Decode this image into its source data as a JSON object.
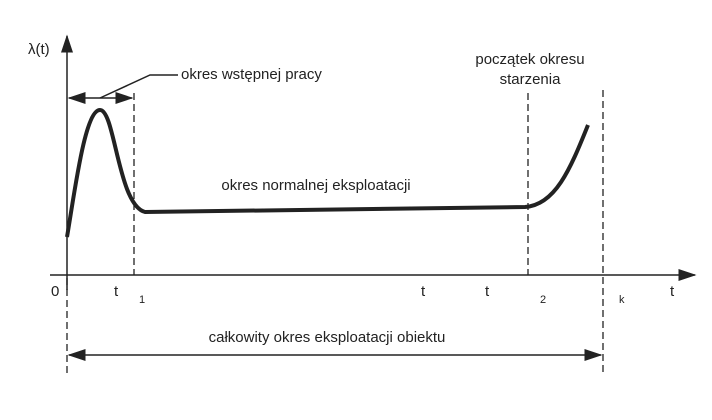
{
  "axes": {
    "y_label": "λ(t)",
    "origin": "0",
    "x_label": "t"
  },
  "markers": {
    "t1": {
      "text": "t",
      "subscript": "1"
    },
    "t_mid": "t",
    "t2": {
      "text": "t",
      "subscript": "2"
    },
    "k": "k"
  },
  "annotations": {
    "initial": "okres wstępnej pracy",
    "aging": [
      "początek okresu",
      "starzenia"
    ],
    "normal": "okres normalnej eksploatacji",
    "total": "całkowity okres eksploatacji obiektu"
  }
}
